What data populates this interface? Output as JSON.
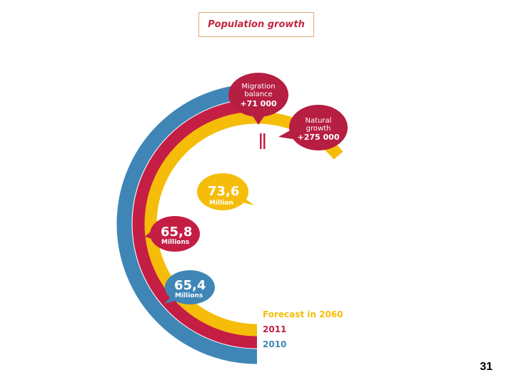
{
  "title": "Population growth",
  "page_number": "31",
  "colors": {
    "forecast_2060": "#f5bd0a",
    "year_2011": "#c41e45",
    "year_2010": "#3f86b6",
    "bubble_migration": "#b61e42"
  },
  "chart_data": {
    "type": "radial-bar",
    "series": [
      {
        "name": "2010",
        "value": 65.4,
        "value_label": "65,4",
        "unit_label": "Millions"
      },
      {
        "name": "2011",
        "value": 65.8,
        "value_label": "65,8",
        "unit_label": "Millions"
      },
      {
        "name": "Forecast in 2060",
        "value": 73.6,
        "value_label": "73,6",
        "unit_label": "Million"
      }
    ],
    "annotations": [
      {
        "label_lines": [
          "Migration",
          "balance"
        ],
        "value": "+71 000"
      },
      {
        "label_lines": [
          "Natural",
          "growth"
        ],
        "value": "+275 000"
      }
    ],
    "legend": [
      "Forecast in 2060",
      "2011",
      "2010"
    ],
    "legend_position": "bottom-right"
  }
}
